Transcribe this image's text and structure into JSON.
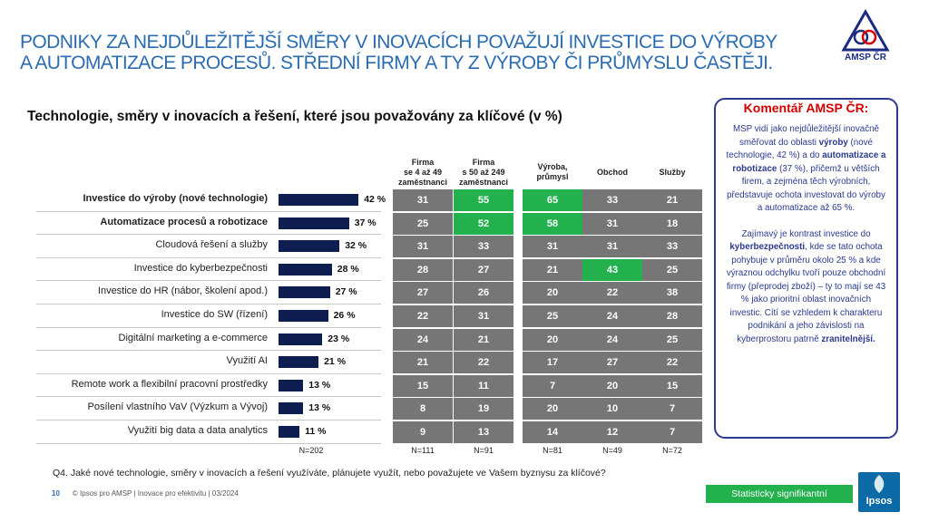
{
  "title": {
    "line1": "PODNIKY ZA NEJDŮLEŽITĚJŠÍ SMĚRY V INOVACÍCH POVAŽUJÍ INVESTICE DO VÝROBY",
    "line2": "A AUTOMATIZACE PROCESŮ. STŘEDNÍ FIRMY A TY Z VÝROBY ČI PRŮMYSLU ČASTĚJI."
  },
  "logo": {
    "text": "AMSP ČR"
  },
  "chart_subtitle": "Technologie, směry v inovacích a řešení, které jsou považovány za klíčové (v %)",
  "chart_data": {
    "type": "bar",
    "title": "Technologie, směry v inovacích a řešení, které jsou považovány za klíčové (v %)",
    "categories": [
      "Investice do výroby (nové technologie)",
      "Automatizace procesů a robotizace",
      "Cloudová řešení a služby",
      "Investice do kyberbezpečnosti",
      "Investice do HR (nábor, školení apod.)",
      "Investice do SW (řízení)",
      "Digitální marketing a e-commerce",
      "Využití AI",
      "Remote work a flexibilní  pracovní prostředky",
      "Posílení vlastního VaV (Výzkum a Vývoj)",
      "Využití big data a data analytics"
    ],
    "bold_rows": [
      0,
      1
    ],
    "values": [
      42,
      37,
      32,
      28,
      27,
      26,
      23,
      21,
      13,
      13,
      11
    ],
    "value_labels": [
      "42 %",
      "37 %",
      "32 %",
      "28 %",
      "27 %",
      "26 %",
      "23 %",
      "21 %",
      "13 %",
      "13 %",
      "11 %"
    ],
    "total_n": "N=202",
    "columns": [
      {
        "name": "Firma\nse 4 až 49\nzaměstnanci",
        "n": "N=111",
        "values": [
          31,
          25,
          31,
          28,
          27,
          22,
          24,
          21,
          15,
          8,
          9
        ],
        "significant": [
          false,
          false,
          false,
          false,
          false,
          false,
          false,
          false,
          false,
          false,
          false
        ]
      },
      {
        "name": "Firma\ns 50 až 249\nzaměstnanci",
        "n": "N=91",
        "values": [
          55,
          52,
          33,
          27,
          26,
          31,
          21,
          22,
          11,
          19,
          13
        ],
        "significant": [
          true,
          true,
          false,
          false,
          false,
          false,
          false,
          false,
          false,
          false,
          false
        ]
      },
      {
        "name": "Výroba,\nprůmysl",
        "n": "N=81",
        "values": [
          65,
          58,
          31,
          21,
          20,
          25,
          20,
          17,
          7,
          20,
          14
        ],
        "significant": [
          true,
          true,
          false,
          false,
          false,
          false,
          false,
          false,
          false,
          false,
          false
        ]
      },
      {
        "name": "Obchod",
        "n": "N=49",
        "values": [
          33,
          31,
          31,
          43,
          22,
          24,
          24,
          27,
          20,
          10,
          12
        ],
        "significant": [
          false,
          false,
          false,
          true,
          false,
          false,
          false,
          false,
          false,
          false,
          false
        ]
      },
      {
        "name": "Služby",
        "n": "N=72",
        "values": [
          21,
          18,
          33,
          25,
          38,
          28,
          25,
          22,
          15,
          7,
          7
        ],
        "significant": [
          false,
          false,
          false,
          false,
          false,
          false,
          false,
          false,
          false,
          false,
          false
        ]
      }
    ],
    "colors": {
      "bar": "#0e1e50",
      "cell": "#767676",
      "significant": "#22b14c"
    }
  },
  "comment": {
    "title": "Komentář AMSP ČR:",
    "p1": [
      {
        "t": "MSP vidí jako nejdůležitější inovačně směřovat do oblasti ",
        "b": false
      },
      {
        "t": "výroby",
        "b": true
      },
      {
        "t": " (nové technologie, 42 %) a do ",
        "b": false
      },
      {
        "t": "automatizace a robotizace",
        "b": true
      },
      {
        "t": " (37 %), přičemž u větších firem, a zejména těch výrobních, představuje ochota investovat do výroby a automatizace až 65 %.",
        "b": false
      }
    ],
    "p2": [
      {
        "t": "Zajímavý je kontrast investice do ",
        "b": false
      },
      {
        "t": "kyberbezpečnosti",
        "b": true
      },
      {
        "t": ", kde se tato ochota pohybuje v průměru okolo 25 % a kde výraznou odchylku tvoří pouze obchodní firmy (přeprodej zboží) – ty to mají se 43 % jako prioritní oblast inovačních investic. Cítí se vzhledem k charakteru podnikání a jeho závislosti na kyberprostoru patrně ",
        "b": false
      },
      {
        "t": "zranitelnější.",
        "b": true
      }
    ]
  },
  "question": "Q4. Jaké nové technologie, směry v inovacích a řešení využíváte, plánujete využít, nebo považujete ve Vašem byznysu za klíčové?",
  "footer": {
    "page": "10",
    "text": "© Ipsos pro AMSP  | Inovace pro efektivitu | 03/2024"
  },
  "legend": {
    "significant_label": "Statisticky signifikantní"
  },
  "brand": {
    "ipsos": "Ipsos",
    "title_color": "#2b6cb0"
  }
}
